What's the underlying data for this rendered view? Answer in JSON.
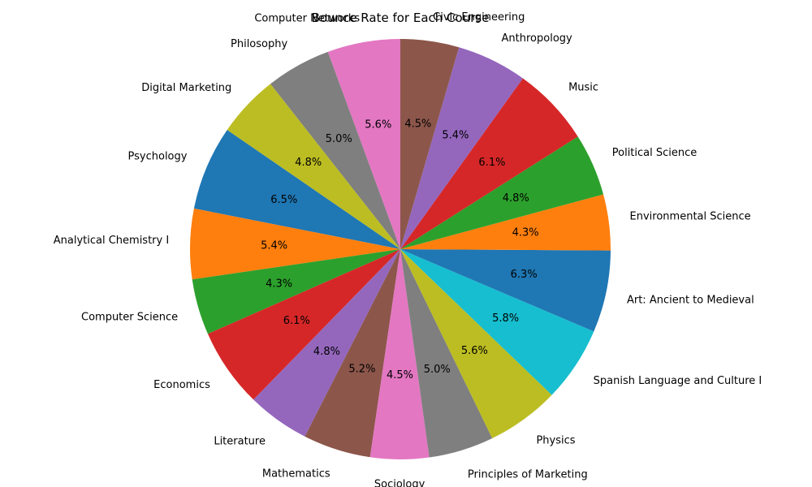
{
  "chart_data": {
    "type": "pie",
    "title": "Bounce Rate for Each Course",
    "start_angle_deg": 90,
    "direction": "counterclockwise",
    "autopct_format": "%.1f%%",
    "slices": [
      {
        "label": "Computer Networks",
        "value": 5.6,
        "color": "#e377c2"
      },
      {
        "label": "Philosophy",
        "value": 5.0,
        "color": "#7f7f7f"
      },
      {
        "label": "Digital Marketing",
        "value": 4.8,
        "color": "#bcbd22"
      },
      {
        "label": "Psychology",
        "value": 6.5,
        "color": "#1f77b4"
      },
      {
        "label": "Analytical Chemistry I",
        "value": 5.4,
        "color": "#ff7f0e"
      },
      {
        "label": "Computer Science",
        "value": 4.3,
        "color": "#2ca02c"
      },
      {
        "label": "Economics",
        "value": 6.1,
        "color": "#d62728"
      },
      {
        "label": "Literature",
        "value": 4.8,
        "color": "#9467bd"
      },
      {
        "label": "Mathematics",
        "value": 5.2,
        "color": "#8c564b"
      },
      {
        "label": "Sociology",
        "value": 4.5,
        "color": "#e377c2"
      },
      {
        "label": "Principles of Marketing",
        "value": 5.0,
        "color": "#7f7f7f"
      },
      {
        "label": "Physics",
        "value": 5.6,
        "color": "#bcbd22"
      },
      {
        "label": "Spanish Language and Culture I",
        "value": 5.8,
        "color": "#17becf"
      },
      {
        "label": "Art: Ancient to Medieval",
        "value": 6.3,
        "color": "#1f77b4"
      },
      {
        "label": "Environmental Science",
        "value": 4.3,
        "color": "#ff7f0e"
      },
      {
        "label": "Political Science",
        "value": 4.8,
        "color": "#2ca02c"
      },
      {
        "label": "Music",
        "value": 6.1,
        "color": "#d62728"
      },
      {
        "label": "Anthropology",
        "value": 5.4,
        "color": "#9467bd"
      },
      {
        "label": "Civic Engineering",
        "value": 4.5,
        "color": "#8c564b"
      }
    ]
  }
}
